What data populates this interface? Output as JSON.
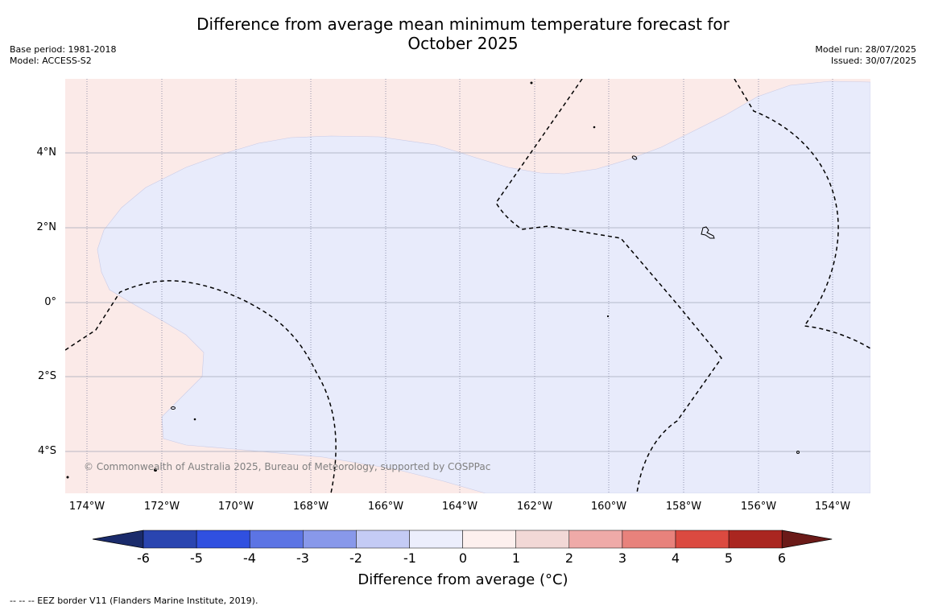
{
  "title_line1": "Difference from average mean minimum temperature forecast for",
  "title_line2": "October 2025",
  "base_period": "Base period: 1981-2018",
  "model": "Model: ACCESS-S2",
  "model_run": "Model run: 28/07/2025",
  "issued": "Issued: 30/07/2025",
  "lat_labels": [
    "4°N",
    "2°N",
    "0°",
    "2°S",
    "4°S"
  ],
  "lon_labels": [
    "174°W",
    "172°W",
    "170°W",
    "168°W",
    "166°W",
    "164°W",
    "162°W",
    "160°W",
    "158°W",
    "156°W",
    "154°W"
  ],
  "copyright": "© Commonwealth of Australia 2025, Bureau of Meteorology, supported by COSPPac",
  "colorbar": {
    "ticks": [
      "-6",
      "-5",
      "-4",
      "-3",
      "-2",
      "-1",
      "0",
      "1",
      "2",
      "3",
      "4",
      "5",
      "6"
    ],
    "colors": [
      "#1a2b6b",
      "#2a45b0",
      "#3050e0",
      "#5c74e4",
      "#8898ea",
      "#c4cbf5",
      "#eceefc",
      "#fdf0ee",
      "#f2d8d6",
      "#efaaa8",
      "#e8827c",
      "#db4a40",
      "#aa2620",
      "#6b1a18"
    ],
    "label": "Difference from average (°C)"
  },
  "map_colors": {
    "warm_fill": "#fbeae8",
    "cool_fill": "#e8ebfb"
  },
  "footer": "--  --  -- EEZ border V11 (Flanders Marine Institute, 2019)."
}
